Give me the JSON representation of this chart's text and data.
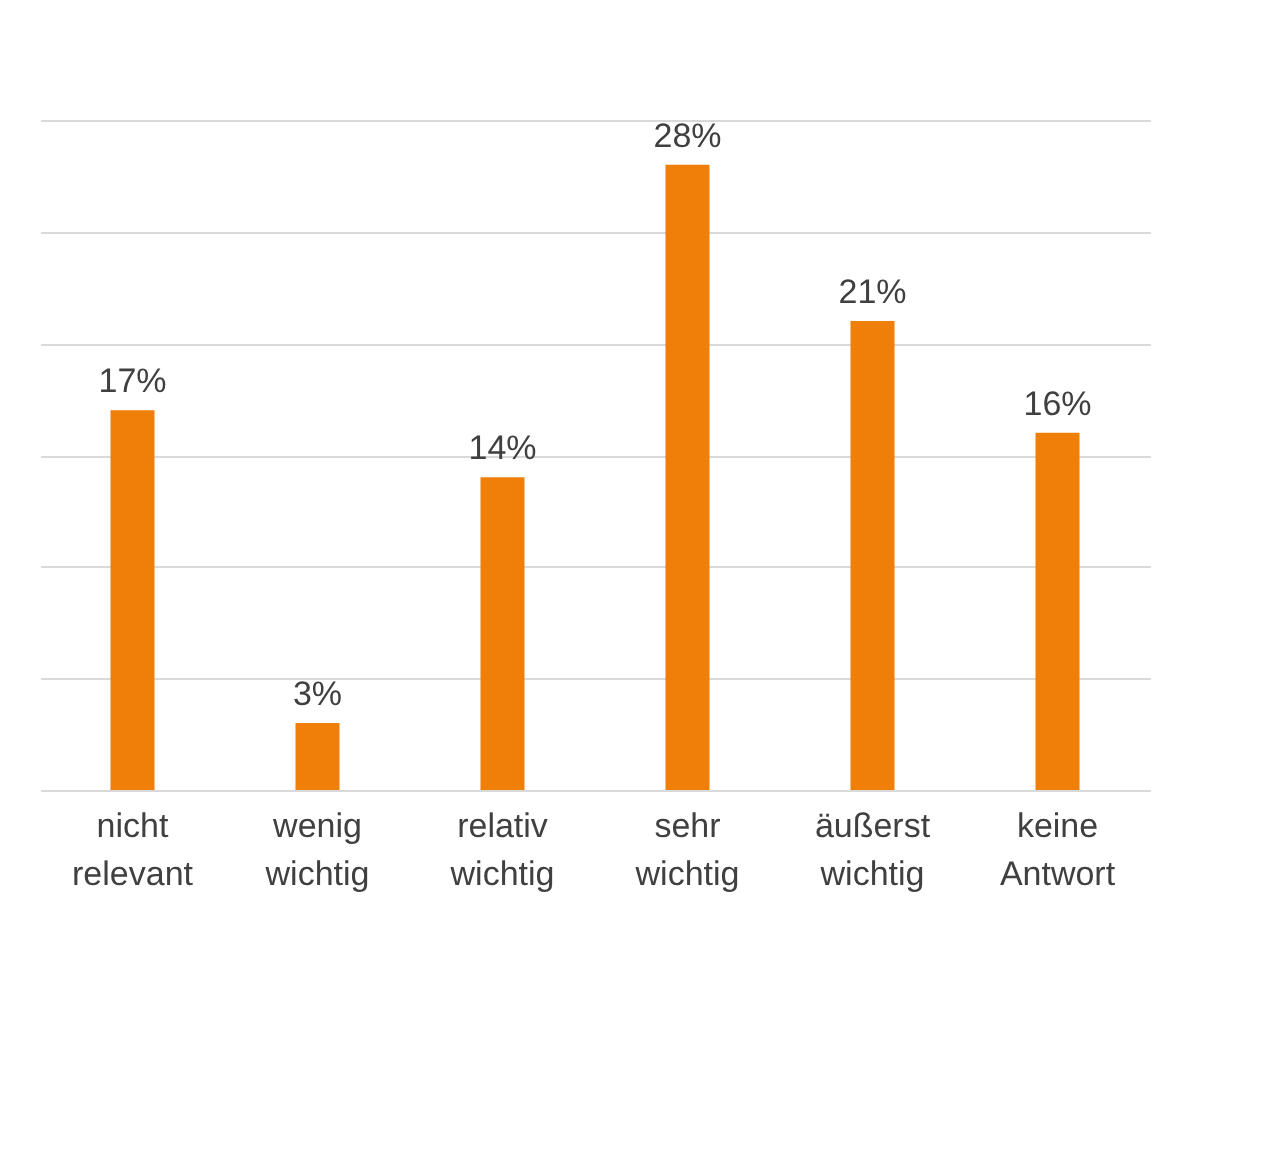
{
  "chart_data": {
    "type": "bar",
    "categories": [
      "nicht relevant",
      "wenig wichtig",
      "relativ wichtig",
      "sehr wichtig",
      "äußerst wichtig",
      "keine Antwort"
    ],
    "values": [
      17,
      3,
      14,
      28,
      21,
      16
    ],
    "value_labels": [
      "17%",
      "3%",
      "14%",
      "28%",
      "21%",
      "16%"
    ],
    "color": "#f07f09",
    "ylim": [
      0,
      30
    ],
    "yticks": [
      {
        "value": 0,
        "label": null
      },
      {
        "value": 5,
        "label": null
      },
      {
        "value": 10,
        "label": null
      },
      {
        "value": 15,
        "label": null
      },
      {
        "value": 20,
        "label": null
      },
      {
        "value": 25,
        "label": null
      },
      {
        "value": 30,
        "label": null
      }
    ],
    "grid": "y",
    "tick_labels": "x"
  }
}
